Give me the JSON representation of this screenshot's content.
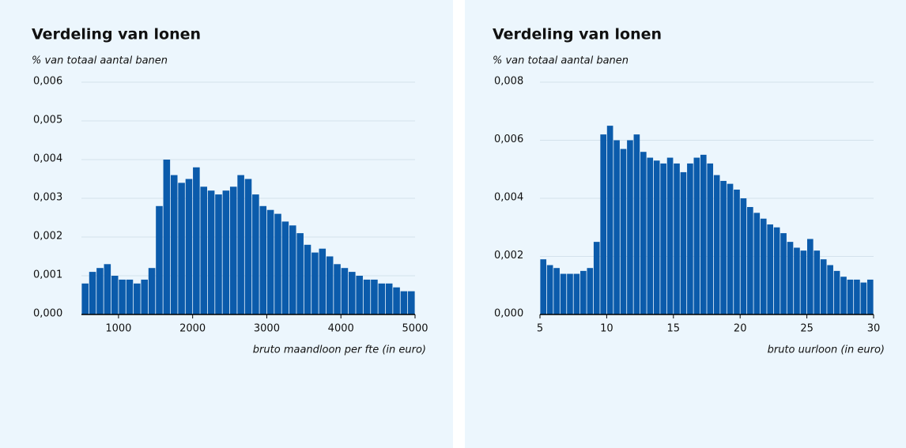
{
  "chart_data": [
    {
      "type": "histogram",
      "title": "Verdeling van lonen",
      "subtitle": "% van totaal aantal banen",
      "x_label": "bruto maandloon per fte (in euro)",
      "color": "#0b5bab",
      "grid": true,
      "bins": [
        500,
        600,
        700,
        800,
        900,
        1000,
        1100,
        1200,
        1300,
        1400,
        1500,
        1600,
        1700,
        1800,
        1900,
        2000,
        2100,
        2200,
        2300,
        2400,
        2500,
        2600,
        2700,
        2800,
        2900,
        3000,
        3100,
        3200,
        3300,
        3400,
        3500,
        3600,
        3700,
        3800,
        3900,
        4000,
        4100,
        4200,
        4300,
        4400,
        4500,
        4600,
        4700,
        4800,
        4900,
        5000
      ],
      "values": [
        0.0008,
        0.0011,
        0.0012,
        0.0013,
        0.001,
        0.0009,
        0.0009,
        0.0008,
        0.0009,
        0.0012,
        0.0028,
        0.004,
        0.0036,
        0.0034,
        0.0035,
        0.0038,
        0.0033,
        0.0032,
        0.0031,
        0.0032,
        0.0033,
        0.0036,
        0.0035,
        0.0031,
        0.0028,
        0.0027,
        0.0026,
        0.0024,
        0.0023,
        0.0021,
        0.0018,
        0.0016,
        0.0017,
        0.0015,
        0.0013,
        0.0012,
        0.0011,
        0.001,
        0.0009,
        0.0009,
        0.0008,
        0.0008,
        0.0007,
        0.0006,
        0.0006
      ],
      "xlim": [
        500,
        5000
      ],
      "xticks": [
        1000,
        2000,
        3000,
        4000,
        5000
      ],
      "ylim": [
        0,
        0.006
      ],
      "yticks": [
        {
          "value": 0,
          "label": "0,000"
        },
        {
          "value": 0.001,
          "label": "0,001"
        },
        {
          "value": 0.002,
          "label": "0,002"
        },
        {
          "value": 0.003,
          "label": "0,003"
        },
        {
          "value": 0.004,
          "label": "0,004"
        },
        {
          "value": 0.005,
          "label": "0,005"
        },
        {
          "value": 0.006,
          "label": "0,006"
        }
      ]
    },
    {
      "type": "histogram",
      "title": "Verdeling van lonen",
      "subtitle": "% van totaal aantal banen",
      "x_label": "bruto uurloon (in euro)",
      "color": "#0b5bab",
      "grid": true,
      "bins": [
        5,
        5.5,
        6,
        6.5,
        7,
        7.5,
        8,
        8.5,
        9,
        9.5,
        10,
        10.5,
        11,
        11.5,
        12,
        12.5,
        13,
        13.5,
        14,
        14.5,
        15,
        15.5,
        16,
        16.5,
        17,
        17.5,
        18,
        18.5,
        19,
        19.5,
        20,
        20.5,
        21,
        21.5,
        22,
        22.5,
        23,
        23.5,
        24,
        24.5,
        25,
        25.5,
        26,
        26.5,
        27,
        27.5,
        28,
        28.5,
        29,
        29.5,
        30
      ],
      "values": [
        0.0019,
        0.0017,
        0.0016,
        0.0014,
        0.0014,
        0.0014,
        0.0015,
        0.0016,
        0.0025,
        0.0062,
        0.0065,
        0.006,
        0.0057,
        0.006,
        0.0062,
        0.0056,
        0.0054,
        0.0053,
        0.0052,
        0.0054,
        0.0052,
        0.0049,
        0.0052,
        0.0054,
        0.0055,
        0.0052,
        0.0048,
        0.0046,
        0.0045,
        0.0043,
        0.004,
        0.0037,
        0.0035,
        0.0033,
        0.0031,
        0.003,
        0.0028,
        0.0025,
        0.0023,
        0.0022,
        0.0026,
        0.0022,
        0.0019,
        0.0017,
        0.0015,
        0.0013,
        0.0012,
        0.0012,
        0.0011,
        0.0012
      ],
      "xlim": [
        5,
        30
      ],
      "xticks": [
        5,
        10,
        15,
        20,
        25,
        30
      ],
      "ylim": [
        0,
        0.008
      ],
      "yticks": [
        {
          "value": 0,
          "label": "0,000"
        },
        {
          "value": 0.002,
          "label": "0,002"
        },
        {
          "value": 0.004,
          "label": "0,004"
        },
        {
          "value": 0.006,
          "label": "0,006"
        },
        {
          "value": 0.008,
          "label": "0,008"
        }
      ]
    }
  ]
}
